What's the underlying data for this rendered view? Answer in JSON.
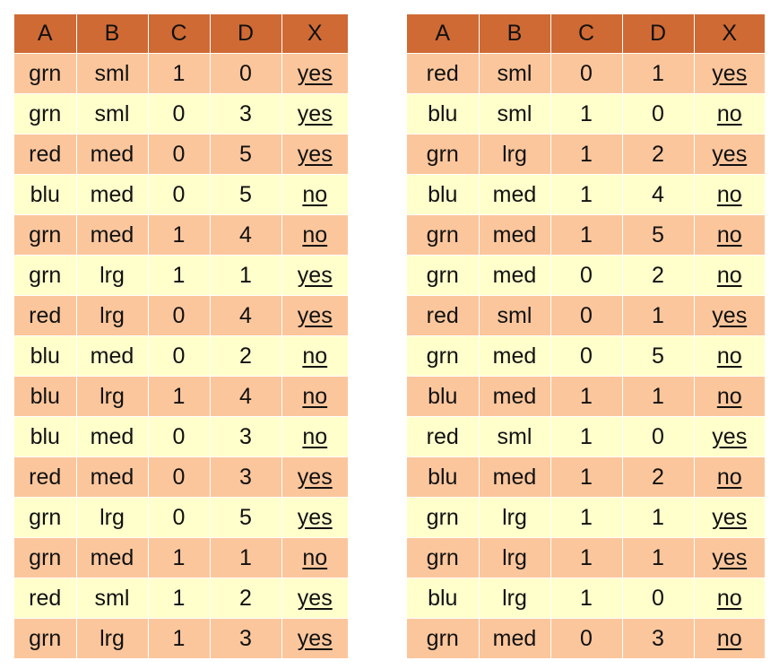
{
  "tables": [
    {
      "headers": [
        "A",
        "B",
        "C",
        "D",
        "X"
      ],
      "rows": [
        [
          "grn",
          "sml",
          "1",
          "0",
          "yes"
        ],
        [
          "grn",
          "sml",
          "0",
          "3",
          "yes"
        ],
        [
          "red",
          "med",
          "0",
          "5",
          "yes"
        ],
        [
          "blu",
          "med",
          "0",
          "5",
          "no"
        ],
        [
          "grn",
          "med",
          "1",
          "4",
          "no"
        ],
        [
          "grn",
          "lrg",
          "1",
          "1",
          "yes"
        ],
        [
          "red",
          "lrg",
          "0",
          "4",
          "yes"
        ],
        [
          "blu",
          "med",
          "0",
          "2",
          "no"
        ],
        [
          "blu",
          "lrg",
          "1",
          "4",
          "no"
        ],
        [
          "blu",
          "med",
          "0",
          "3",
          "no"
        ],
        [
          "red",
          "med",
          "0",
          "3",
          "yes"
        ],
        [
          "grn",
          "lrg",
          "0",
          "5",
          "yes"
        ],
        [
          "grn",
          "med",
          "1",
          "1",
          "no"
        ],
        [
          "red",
          "sml",
          "1",
          "2",
          "yes"
        ],
        [
          "grn",
          "lrg",
          "1",
          "3",
          "yes"
        ]
      ]
    },
    {
      "headers": [
        "A",
        "B",
        "C",
        "D",
        "X"
      ],
      "rows": [
        [
          "red",
          "sml",
          "0",
          "1",
          "yes"
        ],
        [
          "blu",
          "sml",
          "1",
          "0",
          "no"
        ],
        [
          "grn",
          "lrg",
          "1",
          "2",
          "yes"
        ],
        [
          "blu",
          "med",
          "1",
          "4",
          "no"
        ],
        [
          "grn",
          "med",
          "1",
          "5",
          "no"
        ],
        [
          "grn",
          "med",
          "0",
          "2",
          "no"
        ],
        [
          "red",
          "sml",
          "0",
          "1",
          "yes"
        ],
        [
          "grn",
          "med",
          "0",
          "5",
          "no"
        ],
        [
          "blu",
          "med",
          "1",
          "1",
          "no"
        ],
        [
          "red",
          "sml",
          "1",
          "0",
          "yes"
        ],
        [
          "blu",
          "med",
          "1",
          "2",
          "no"
        ],
        [
          "grn",
          "lrg",
          "1",
          "1",
          "yes"
        ],
        [
          "grn",
          "lrg",
          "1",
          "1",
          "yes"
        ],
        [
          "blu",
          "lrg",
          "1",
          "0",
          "no"
        ],
        [
          "grn",
          "med",
          "0",
          "3",
          "no"
        ]
      ]
    }
  ],
  "colors": {
    "header_bg": "#cf6a34",
    "row_odd_bg": "#fcc69c",
    "row_even_bg": "#ffffcc"
  }
}
